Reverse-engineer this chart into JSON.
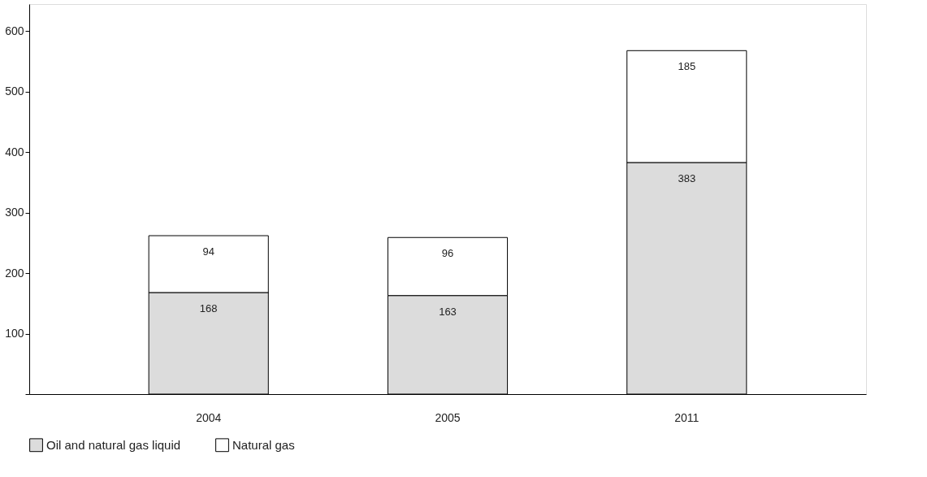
{
  "chart_data": {
    "type": "bar",
    "stacked": true,
    "data_labels": true,
    "legend": "bottom",
    "grid": false,
    "categories": [
      "2004",
      "2005",
      "2011"
    ],
    "series": [
      {
        "name": "Oil and natural gas liquid",
        "color": "#dcdcdc",
        "values": [
          168,
          163,
          383
        ]
      },
      {
        "name": "Natural gas",
        "color": "#ffffff",
        "values": [
          94,
          96,
          185
        ]
      }
    ],
    "ylim": [
      0,
      645
    ],
    "yticks": [
      {
        "value": 0,
        "label": null
      },
      100,
      200,
      300,
      400,
      500,
      600
    ]
  }
}
